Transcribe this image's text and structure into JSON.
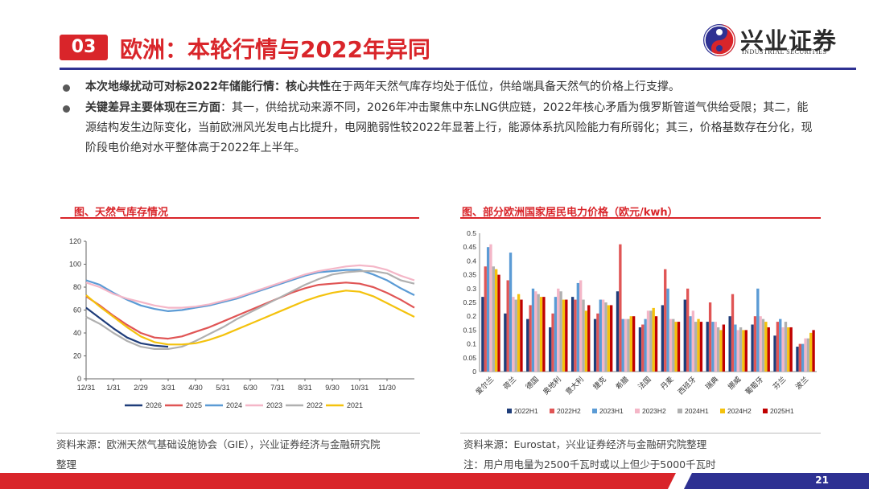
{
  "header": {
    "section_number": "03",
    "title": "欧洲：本轮行情与2022年异同",
    "logo_cn": "兴业证券",
    "logo_en": "INDUSTRIAL SECURITIES"
  },
  "bullets": [
    {
      "bold": "本次地缘扰动可对标2022年储能行情：核心共性",
      "text": "在于两年天然气库存均处于低位，供给端具备天然气的价格上行支撑。"
    },
    {
      "bold": "关键差异主要体现在三方面",
      "text": "：其一，供给扰动来源不同，2026年冲击聚焦中东LNG供应链，2022年核心矛盾为俄罗斯管道气供给受限；其二，能源结构发生边际变化，当前欧洲风光发电占比提升，电网脆弱性较2022年显著上行，能源体系抗风险能力有所弱化；其三，价格基数存在分化，现阶段电价绝对水平整体高于2022年上半年。"
    }
  ],
  "left_chart": {
    "title": "图、天然气库存情况",
    "source_line1": "资料来源：欧洲天然气基础设施协会（GIE），兴业证券经济与金融研究院",
    "source_line2": "整理"
  },
  "right_chart": {
    "title": "图、部分欧洲国家居民电力价格（欧元/kwh）",
    "source_line1": "资料来源：Eurostat，兴业证券经济与金融研究院整理",
    "note": "注：用户用电量为2500千瓦时或以上但少于5000千瓦时"
  },
  "page_number": "21",
  "colors": {
    "accent": "#d9252a",
    "navy": "#2e3192"
  },
  "chart_data": [
    {
      "type": "line",
      "title": "图、天然气库存情况",
      "x_ticks": [
        "12/31",
        "1/31",
        "2/29",
        "3/31",
        "4/30",
        "5/31",
        "6/30",
        "7/31",
        "8/31",
        "9/30",
        "10/31",
        "11/30"
      ],
      "x_range": [
        0,
        12
      ],
      "ylim": [
        0,
        120
      ],
      "y_ticks": [
        "0",
        "20",
        "40",
        "60",
        "80",
        "100",
        "120"
      ],
      "legend": "bottom",
      "series": [
        {
          "name": "2026",
          "color": "#1f3d7a",
          "x": [
            0,
            0.5,
            1,
            1.5,
            2,
            2.5,
            3
          ],
          "y": [
            62,
            53,
            44,
            36,
            31,
            29,
            28
          ]
        },
        {
          "name": "2025",
          "color": "#e05555",
          "x": [
            0,
            0.5,
            1,
            1.5,
            2,
            2.5,
            3,
            3.5,
            4,
            4.5,
            5,
            5.5,
            6,
            6.5,
            7,
            7.5,
            8,
            8.5,
            9,
            9.5,
            10,
            10.5,
            11,
            11.5,
            12
          ],
          "y": [
            72,
            64,
            55,
            47,
            40,
            36,
            35,
            37,
            41,
            45,
            50,
            55,
            60,
            65,
            70,
            75,
            79,
            82,
            83,
            84,
            83,
            80,
            75,
            69,
            62
          ]
        },
        {
          "name": "2024",
          "color": "#5b9bd5",
          "x": [
            0,
            0.5,
            1,
            1.5,
            2,
            2.5,
            3,
            3.5,
            4,
            4.5,
            5,
            5.5,
            6,
            6.5,
            7,
            7.5,
            8,
            8.5,
            9,
            9.5,
            10,
            10.5,
            11,
            11.5,
            12
          ],
          "y": [
            86,
            82,
            75,
            69,
            64,
            61,
            59,
            60,
            62,
            64,
            67,
            70,
            74,
            78,
            82,
            86,
            90,
            93,
            94,
            95,
            95,
            91,
            86,
            79,
            73
          ]
        },
        {
          "name": "2023",
          "color": "#f4b6c7",
          "x": [
            0,
            0.5,
            1,
            1.5,
            2,
            2.5,
            3,
            3.5,
            4,
            4.5,
            5,
            5.5,
            6,
            6.5,
            7,
            7.5,
            8,
            8.5,
            9,
            9.5,
            10,
            10.5,
            11,
            11.5,
            12
          ],
          "y": [
            84,
            80,
            74,
            70,
            67,
            64,
            62,
            62,
            63,
            65,
            68,
            71,
            75,
            79,
            83,
            87,
            91,
            94,
            96,
            98,
            99,
            98,
            95,
            90,
            86
          ]
        },
        {
          "name": "2022",
          "color": "#b0b0b0",
          "x": [
            0,
            0.5,
            1,
            1.5,
            2,
            2.5,
            3,
            3.5,
            4,
            4.5,
            5,
            5.5,
            6,
            6.5,
            7,
            7.5,
            8,
            8.5,
            9,
            9.5,
            10,
            10.5,
            11,
            11.5,
            12
          ],
          "y": [
            54,
            48,
            40,
            33,
            28,
            26,
            26,
            28,
            33,
            39,
            45,
            52,
            58,
            64,
            70,
            76,
            82,
            87,
            91,
            93,
            94,
            94,
            92,
            86,
            83
          ]
        },
        {
          "name": "2021",
          "color": "#f4c20d",
          "x": [
            0,
            0.5,
            1,
            1.5,
            2,
            2.5,
            3,
            3.5,
            4,
            4.5,
            5,
            5.5,
            6,
            6.5,
            7,
            7.5,
            8,
            8.5,
            9,
            9.5,
            10,
            10.5,
            11,
            11.5,
            12
          ],
          "y": [
            73,
            63,
            54,
            45,
            37,
            32,
            30,
            30,
            31,
            34,
            38,
            43,
            48,
            53,
            58,
            63,
            68,
            72,
            75,
            77,
            76,
            72,
            66,
            60,
            54
          ]
        }
      ]
    },
    {
      "type": "bar",
      "title": "图、部分欧洲国家居民电力价格（欧元/kwh）",
      "categories": [
        "爱尔兰",
        "荷兰",
        "德国",
        "奥地利",
        "意大利",
        "捷克",
        "希腊",
        "法国",
        "丹麦",
        "西班牙",
        "瑞典",
        "挪威",
        "葡萄牙",
        "芬兰",
        "波兰"
      ],
      "ylim": [
        0,
        0.5
      ],
      "y_ticks": [
        "0",
        "0.05",
        "0.1",
        "0.15",
        "0.2",
        "0.25",
        "0.3",
        "0.35",
        "0.4",
        "0.45",
        "0.5"
      ],
      "legend": "bottom",
      "series": [
        {
          "name": "2022H1",
          "color": "#1f3d7a",
          "values": [
            0.27,
            0.21,
            0.19,
            0.16,
            0.27,
            0.19,
            0.29,
            0.16,
            0.24,
            0.26,
            0.18,
            0.2,
            0.17,
            0.13,
            0.09
          ]
        },
        {
          "name": "2022H2",
          "color": "#e05555",
          "values": [
            0.38,
            0.33,
            0.24,
            0.21,
            0.26,
            0.21,
            0.46,
            0.17,
            0.37,
            0.3,
            0.25,
            0.28,
            0.2,
            0.18,
            0.1
          ]
        },
        {
          "name": "2023H1",
          "color": "#5b9bd5",
          "values": [
            0.45,
            0.43,
            0.3,
            0.27,
            0.32,
            0.26,
            0.19,
            0.19,
            0.3,
            0.2,
            0.18,
            0.17,
            0.3,
            0.19,
            0.1
          ]
        },
        {
          "name": "2023H2",
          "color": "#f4b6c7",
          "values": [
            0.46,
            0.27,
            0.29,
            0.3,
            0.33,
            0.26,
            0.19,
            0.22,
            0.19,
            0.22,
            0.18,
            0.15,
            0.2,
            0.16,
            0.12
          ]
        },
        {
          "name": "2024H1",
          "color": "#b0b0b0",
          "values": [
            0.38,
            0.26,
            0.28,
            0.29,
            0.26,
            0.25,
            0.19,
            0.22,
            0.19,
            0.18,
            0.16,
            0.16,
            0.19,
            0.18,
            0.12
          ]
        },
        {
          "name": "2024H2",
          "color": "#f4c20d",
          "values": [
            0.37,
            0.28,
            0.27,
            0.26,
            0.22,
            0.24,
            0.2,
            0.23,
            0.18,
            0.19,
            0.15,
            0.15,
            0.18,
            0.16,
            0.14
          ]
        },
        {
          "name": "2025H1",
          "color": "#c00000",
          "values": [
            0.35,
            0.26,
            0.27,
            0.26,
            0.24,
            0.24,
            0.2,
            0.2,
            0.18,
            0.18,
            0.17,
            0.15,
            0.16,
            0.16,
            0.15
          ]
        }
      ]
    }
  ]
}
